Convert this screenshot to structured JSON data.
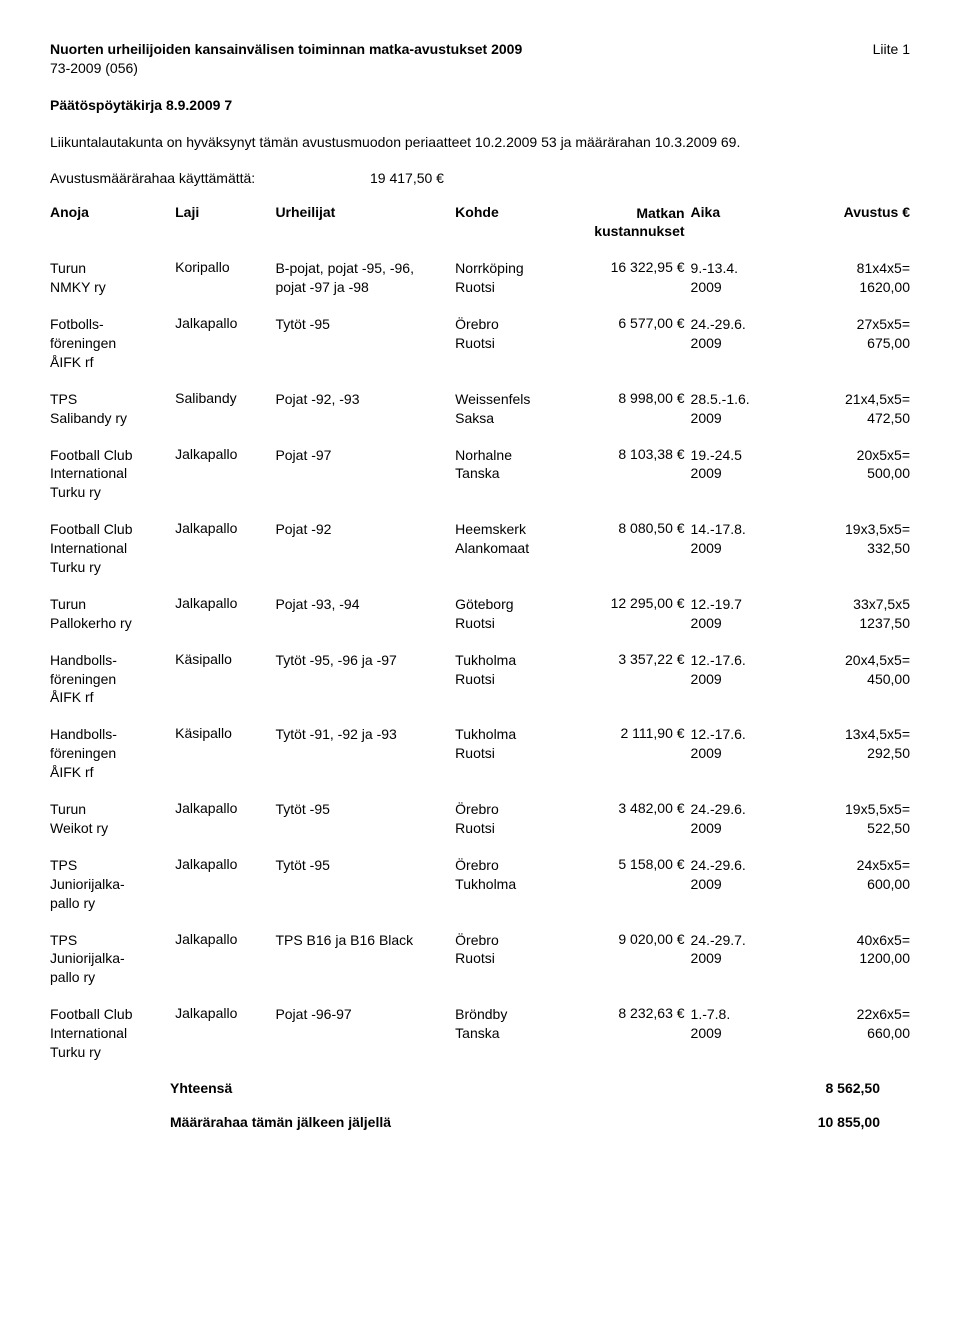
{
  "header": {
    "title": "Nuorten urheilijoiden kansainvälisen toiminnan matka-avustukset 2009",
    "liite": "Liite 1",
    "ref": "73-2009 (056)",
    "meeting": "Päätöspöytäkirja 8.9.2009 7",
    "intro": "Liikuntalautakunta on hyväksynyt tämän avustusmuodon periaatteet 10.2.2009 53 ja määrärahan 10.3.2009 69.",
    "avustus_label": "Avustusmäärärahaa käyttämättä:",
    "avustus_amount": "19 417,50 €"
  },
  "columns": {
    "anoja": "Anoja",
    "laji": "Laji",
    "urheilijat": "Urheilijat",
    "kohde": "Kohde",
    "matkan": "Matkan\nkustannukset",
    "aika": "Aika",
    "avustus": "Avustus €"
  },
  "rows": [
    {
      "anoja": "Turun\nNMKY ry",
      "laji": "Koripallo",
      "urh": "B-pojat, pojat -95, -96,\npojat -97 ja -98",
      "kohde": "Norrköping\nRuotsi",
      "matkan": "16 322,95 €",
      "aika": "9.-13.4.\n2009",
      "avust": "81x4x5=\n1620,00"
    },
    {
      "anoja": "Fotbolls-\nföreningen\nÅIFK rf",
      "laji": "Jalkapallo",
      "urh": "Tytöt -95",
      "kohde": "Örebro\nRuotsi",
      "matkan": "6 577,00 €",
      "aika": "24.-29.6.\n2009",
      "avust": "27x5x5=\n675,00"
    },
    {
      "anoja": "TPS\nSalibandy ry",
      "laji": "Salibandy",
      "urh": "Pojat -92, -93",
      "kohde": "Weissenfels\nSaksa",
      "matkan": "8 998,00 €",
      "aika": "28.5.-1.6.\n2009",
      "avust": "21x4,5x5=\n472,50"
    },
    {
      "anoja": "Football Club\nInternational\nTurku ry",
      "laji": "Jalkapallo",
      "urh": "Pojat -97",
      "kohde": "Norhalne\nTanska",
      "matkan": "8 103,38 €",
      "aika": "19.-24.5\n2009",
      "avust": "20x5x5=\n500,00"
    },
    {
      "anoja": "Football Club\nInternational\nTurku ry",
      "laji": "Jalkapallo",
      "urh": "Pojat -92",
      "kohde": "Heemskerk\nAlankomaat",
      "matkan": "8 080,50 €",
      "aika": "14.-17.8.\n2009",
      "avust": "19x3,5x5=\n332,50"
    },
    {
      "anoja": "Turun\nPallokerho ry",
      "laji": "Jalkapallo",
      "urh": "Pojat -93, -94",
      "kohde": "Göteborg\nRuotsi",
      "matkan": "12 295,00 €",
      "aika": "12.-19.7\n2009",
      "avust": "33x7,5x5\n1237,50"
    },
    {
      "anoja": "Handbolls-\nföreningen\nÅIFK rf",
      "laji": "Käsipallo",
      "urh": "Tytöt -95, -96 ja -97",
      "kohde": "Tukholma\nRuotsi",
      "matkan": "3 357,22 €",
      "aika": "12.-17.6.\n2009",
      "avust": "20x4,5x5=\n450,00"
    },
    {
      "anoja": "Handbolls-\nföreningen\nÅIFK rf",
      "laji": "Käsipallo",
      "urh": "Tytöt -91, -92 ja -93",
      "kohde": "Tukholma\nRuotsi",
      "matkan": "2 111,90 €",
      "aika": "12.-17.6.\n2009",
      "avust": "13x4,5x5=\n292,50"
    },
    {
      "anoja": "Turun\nWeikot ry",
      "laji": "Jalkapallo",
      "urh": "Tytöt -95",
      "kohde": "Örebro\nRuotsi",
      "matkan": "3 482,00 €",
      "aika": "24.-29.6.\n2009",
      "avust": "19x5,5x5=\n522,50"
    },
    {
      "anoja": "TPS\nJuniorijalka-\npallo ry",
      "laji": "Jalkapallo",
      "urh": "Tytöt -95",
      "kohde": "Örebro\nTukholma",
      "matkan": "5 158,00 €",
      "aika": "24.-29.6.\n2009",
      "avust": "24x5x5=\n600,00"
    },
    {
      "anoja": "TPS\nJuniorijalka-\npallo ry",
      "laji": "Jalkapallo",
      "urh": "TPS B16 ja B16 Black",
      "kohde": "Örebro\nRuotsi",
      "matkan": "9 020,00 €",
      "aika": "24.-29.7.\n2009",
      "avust": "40x6x5=\n1200,00"
    },
    {
      "anoja": "Football Club\nInternational\nTurku ry",
      "laji": "Jalkapallo",
      "urh": "Pojat -96-97",
      "kohde": "Bröndby\nTanska",
      "matkan": "8 232,63 €",
      "aika": "1.-7.8.\n2009",
      "avust": "22x6x5=\n660,00"
    }
  ],
  "footer": {
    "yhteensa_label": "Yhteensä",
    "yhteensa_value": "8 562,50",
    "maararaha_label": "Määrärahaa tämän jälkeen jäljellä",
    "maararaha_value": "10 855,00"
  }
}
